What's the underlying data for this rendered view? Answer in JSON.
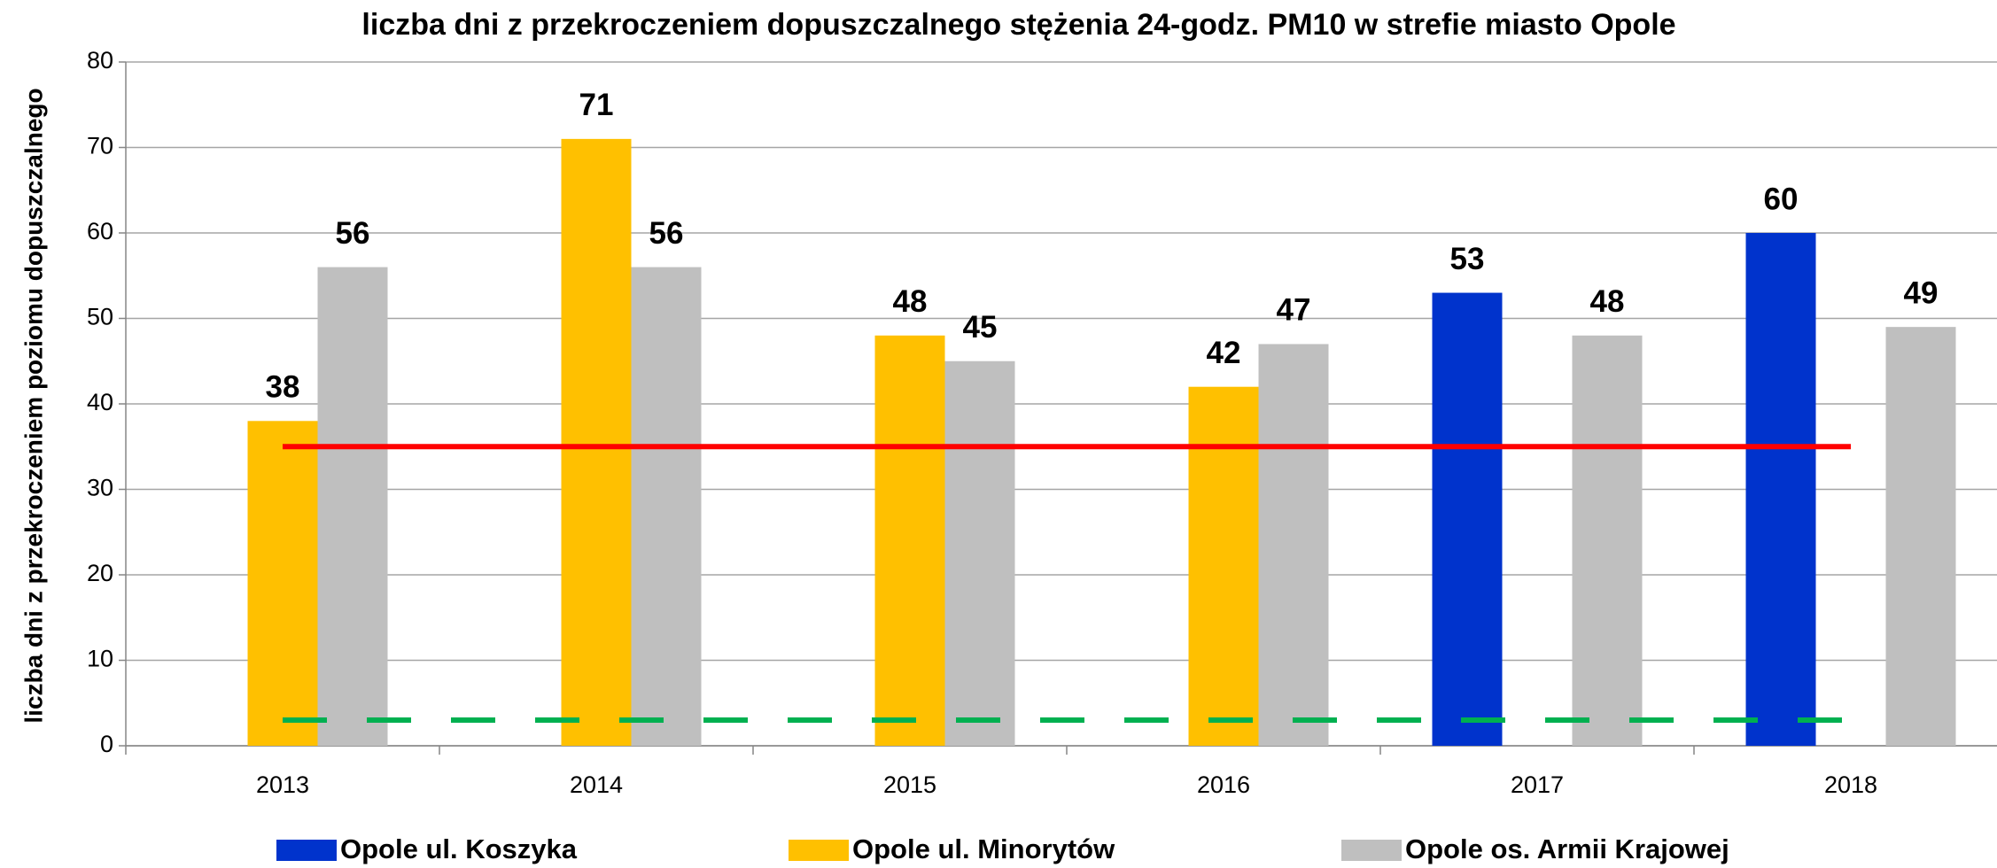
{
  "chart_data": {
    "type": "bar",
    "title": "liczba dni z przekroczeniem dopuszczalnego stężenia 24-godz. PM10 w strefie miasto Opole",
    "y_label": "liczba dni z przekroczeniem poziomu dopuszczalnego",
    "categories": [
      "2013",
      "2014",
      "2015",
      "2016",
      "2017",
      "2018"
    ],
    "series": [
      {
        "name": "Opole ul. Koszyka",
        "color": "#0033cc",
        "values": [
          null,
          null,
          null,
          null,
          53,
          60
        ]
      },
      {
        "name": "Opole ul. Minorytów",
        "color": "#ffc000",
        "values": [
          38,
          71,
          48,
          42,
          null,
          null
        ]
      },
      {
        "name": "Opole os. Armii Krajowej",
        "color": "#bfbfbf",
        "values": [
          56,
          56,
          45,
          47,
          48,
          49
        ]
      }
    ],
    "reference_lines": [
      {
        "value": 35,
        "color": "#ff0000",
        "dashed": false
      },
      {
        "value": 3,
        "color": "#00b050",
        "dashed": true
      }
    ],
    "ylim": [
      0,
      80
    ],
    "yticks": [
      0,
      10,
      20,
      30,
      40,
      50,
      60,
      70,
      80
    ],
    "grid": true,
    "legend": "bottom"
  }
}
